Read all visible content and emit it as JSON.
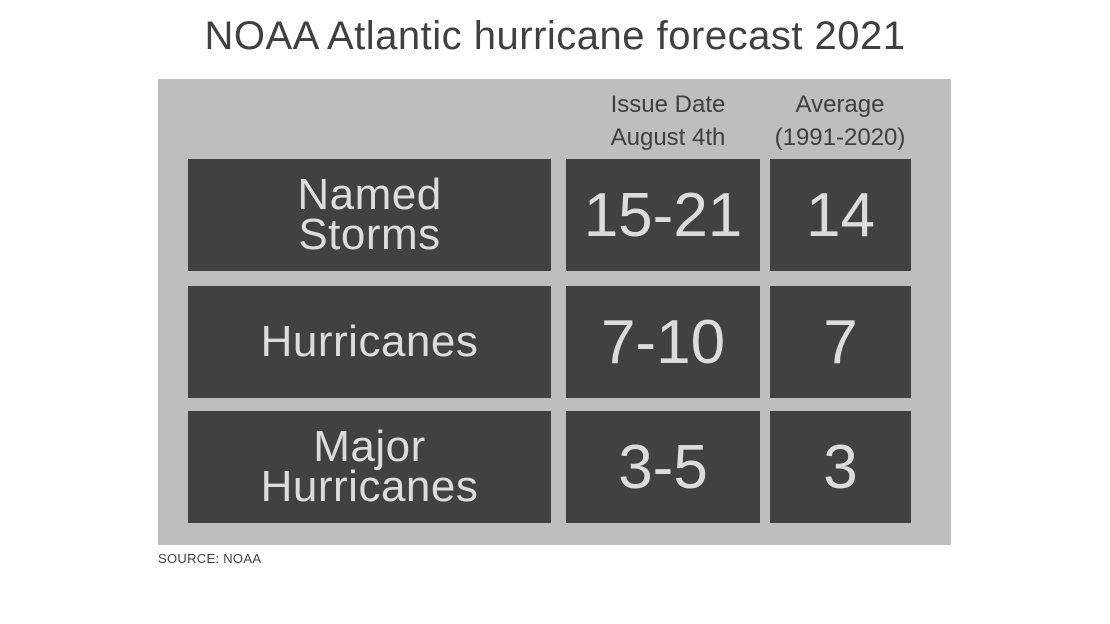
{
  "title": "NOAA Atlantic hurricane forecast 2021",
  "source": "SOURCE: NOAA",
  "chart_data": {
    "type": "table",
    "title": "NOAA Atlantic hurricane forecast 2021",
    "columns": [
      {
        "line1": "Issue Date",
        "line2": "August 4th"
      },
      {
        "line1": "Average",
        "line2": "(1991-2020)"
      }
    ],
    "rows": [
      {
        "label_lines": [
          "Named",
          "Storms"
        ],
        "forecast": "15-21",
        "average": "14"
      },
      {
        "label_lines": [
          "Hurricanes"
        ],
        "forecast": "7-10",
        "average": "7"
      },
      {
        "label_lines": [
          "Major",
          "Hurricanes"
        ],
        "forecast": "3-5",
        "average": "3"
      }
    ]
  },
  "colors": {
    "panel": "#bebebe",
    "cell": "#414141",
    "cell_text": "#dcdcdc",
    "header_text": "#404040"
  }
}
